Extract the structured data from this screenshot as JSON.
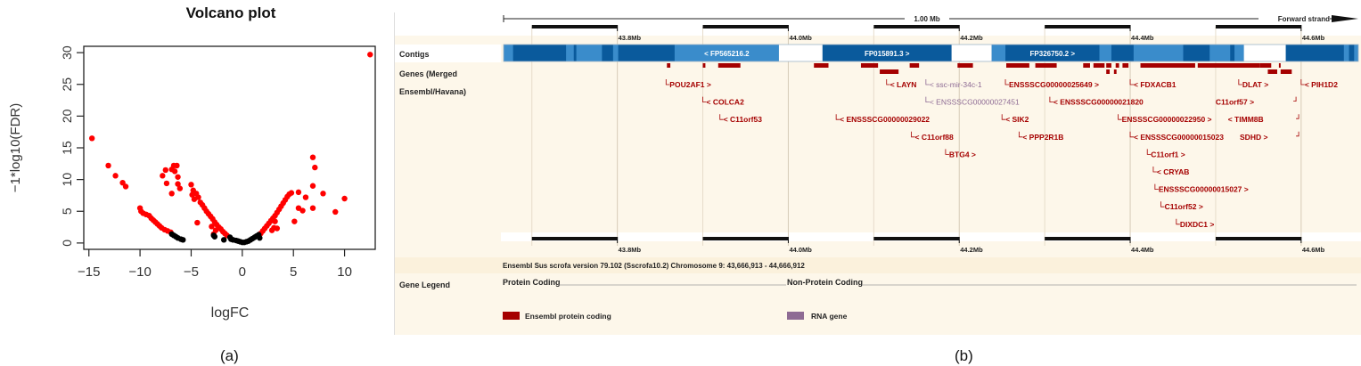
{
  "chart_data": [
    {
      "type": "scatter",
      "title": "Volcano plot",
      "xlabel": "logFC",
      "ylabel": "−1*log10(FDR)",
      "xlim": [
        -15.5,
        13
      ],
      "ylim": [
        -1,
        31
      ],
      "xticks": [
        -15,
        -10,
        -5,
        0,
        5,
        10
      ],
      "xtick_labels": [
        "−15",
        "−10",
        "−5",
        "0",
        "5",
        "10"
      ],
      "yticks": [
        0,
        5,
        10,
        15,
        20,
        25,
        30
      ],
      "ytick_labels": [
        "0",
        "5",
        "10",
        "15",
        "20",
        "25",
        "30"
      ],
      "grid": false,
      "series": [
        {
          "name": "significant",
          "color": "#ff0000",
          "points": [
            [
              12.5,
              29.7
            ],
            [
              -14.7,
              16.5
            ],
            [
              -13.1,
              12.2
            ],
            [
              -12.4,
              10.6
            ],
            [
              -11.7,
              9.5
            ],
            [
              -11.4,
              8.9
            ],
            [
              -10,
              5.5
            ],
            [
              -9.9,
              5.0
            ],
            [
              -9.7,
              4.7
            ],
            [
              -9.4,
              4.5
            ],
            [
              -9.1,
              4.3
            ],
            [
              -8.9,
              3.9
            ],
            [
              -8.7,
              3.6
            ],
            [
              -8.5,
              3.3
            ],
            [
              -8.3,
              3.0
            ],
            [
              -8.1,
              2.7
            ],
            [
              -7.9,
              2.4
            ],
            [
              -7.6,
              2.1
            ],
            [
              -7.3,
              1.9
            ],
            [
              -7.0,
              1.7
            ],
            [
              -7.8,
              10.6
            ],
            [
              -7.5,
              11.5
            ],
            [
              -7.4,
              9.4
            ],
            [
              -6.9,
              11.6
            ],
            [
              -6.7,
              12.2
            ],
            [
              -6.4,
              12.2
            ],
            [
              -6.6,
              11.3
            ],
            [
              -6.3,
              10.4
            ],
            [
              -6.9,
              7.8
            ],
            [
              -6.3,
              9.3
            ],
            [
              -6.1,
              8.6
            ],
            [
              -5.0,
              9.2
            ],
            [
              -4.8,
              8.3
            ],
            [
              -4.9,
              7.6
            ],
            [
              -4.7,
              6.9
            ],
            [
              -4.5,
              7.8
            ],
            [
              -4.3,
              7.2
            ],
            [
              -4.1,
              6.4
            ],
            [
              -3.9,
              6.0
            ],
            [
              -3.7,
              5.5
            ],
            [
              -3.5,
              5.0
            ],
            [
              -3.3,
              4.6
            ],
            [
              -3.1,
              4.2
            ],
            [
              -2.9,
              3.8
            ],
            [
              -2.7,
              3.3
            ],
            [
              -2.5,
              2.9
            ],
            [
              -2.3,
              2.5
            ],
            [
              -2.1,
              2.2
            ],
            [
              -1.9,
              1.8
            ],
            [
              -1.7,
              1.5
            ],
            [
              -1.5,
              1.2
            ],
            [
              -4.4,
              3.2
            ],
            [
              -3.0,
              2.6
            ],
            [
              -2.6,
              2.0
            ],
            [
              -2.8,
              1.4
            ],
            [
              1.8,
              1.5
            ],
            [
              2.0,
              1.9
            ],
            [
              2.2,
              2.3
            ],
            [
              2.4,
              2.7
            ],
            [
              2.6,
              3.1
            ],
            [
              2.8,
              3.5
            ],
            [
              3.0,
              3.9
            ],
            [
              3.2,
              4.3
            ],
            [
              3.4,
              4.8
            ],
            [
              3.6,
              5.3
            ],
            [
              3.8,
              5.8
            ],
            [
              4.0,
              6.3
            ],
            [
              4.2,
              6.8
            ],
            [
              4.4,
              7.3
            ],
            [
              4.6,
              7.7
            ],
            [
              4.8,
              7.9
            ],
            [
              3.1,
              2.4
            ],
            [
              3.4,
              2.3
            ],
            [
              3.2,
              3.4
            ],
            [
              2.9,
              2.0
            ],
            [
              5.5,
              8.0
            ],
            [
              6.2,
              7.2
            ],
            [
              5.5,
              5.5
            ],
            [
              5.9,
              5.1
            ],
            [
              5.1,
              3.4
            ],
            [
              6.9,
              13.5
            ],
            [
              7.1,
              11.9
            ],
            [
              6.9,
              9.0
            ],
            [
              6.9,
              5.5
            ],
            [
              7.9,
              7.8
            ],
            [
              9.1,
              4.9
            ],
            [
              10.0,
              7.0
            ]
          ]
        },
        {
          "name": "not significant",
          "color": "#000000",
          "points": [
            [
              -6.9,
              1.4
            ],
            [
              -6.7,
              1.2
            ],
            [
              -6.5,
              1.0
            ],
            [
              -6.3,
              0.8
            ],
            [
              -6.0,
              0.6
            ],
            [
              -5.8,
              0.5
            ],
            [
              -2.8,
              1.2
            ],
            [
              -2.7,
              1.0
            ],
            [
              -1.8,
              0.5
            ],
            [
              -1.2,
              0.9
            ],
            [
              -1.1,
              0.6
            ],
            [
              -0.9,
              0.5
            ],
            [
              -0.6,
              0.4
            ],
            [
              -0.4,
              0.3
            ],
            [
              -0.2,
              0.2
            ],
            [
              0,
              0.1
            ],
            [
              0.2,
              0.1
            ],
            [
              0.4,
              0.2
            ],
            [
              0.6,
              0.3
            ],
            [
              0.8,
              0.5
            ],
            [
              1.0,
              0.7
            ],
            [
              1.2,
              0.9
            ],
            [
              1.4,
              1.1
            ],
            [
              1.6,
              1.3
            ],
            [
              1.7,
              0.8
            ]
          ]
        }
      ]
    },
    {
      "type": "genome-track",
      "region": "Chromosome 9: 43,666,913 - 44,666,912",
      "scale_label": "1.00 Mb",
      "strand_label": "Forward strand",
      "ticks_mb": [
        43.8,
        44.0,
        44.2,
        44.4,
        44.6
      ],
      "tick_labels": [
        "43.8Mb",
        "44.0Mb",
        "44.2Mb",
        "44.4Mb",
        "44.6Mb"
      ],
      "start_mb": 43.6669,
      "end_mb": 44.6669,
      "track_labels": {
        "contigs": "Contigs",
        "genes_line1": "Genes (Merged",
        "genes_line2": "Ensembl/Havana)",
        "legend": "Gene Legend"
      },
      "contigs": [
        {
          "label": "< FP565216.2",
          "start": 43.867,
          "end": 43.989,
          "shade": "light"
        },
        {
          "label": "FP015891.3 >",
          "start": 44.04,
          "end": 44.191,
          "shade": "dark"
        },
        {
          "label": "FP326750.2 >",
          "start": 44.254,
          "end": 44.364,
          "shade": "dark"
        }
      ],
      "genes": [
        {
          "label": "POU2AF1 >",
          "pos": 43.857,
          "row": 0,
          "type": "protein"
        },
        {
          "label": "< COLCA2",
          "pos": 43.9,
          "row": 1,
          "type": "protein"
        },
        {
          "label": "< C11orf53",
          "pos": 43.92,
          "row": 2,
          "type": "protein"
        },
        {
          "label": "< LAYN",
          "pos": 44.115,
          "row": 0,
          "type": "protein"
        },
        {
          "label": "< ssc-mir-34c-1",
          "pos": 44.161,
          "row": 0,
          "type": "rna"
        },
        {
          "label": "< ENSSSCG00000027451",
          "pos": 44.161,
          "row": 1,
          "type": "rna"
        },
        {
          "label": "< ENSSSCG00000029022",
          "pos": 44.056,
          "row": 2,
          "type": "protein"
        },
        {
          "label": "< C11orf88",
          "pos": 44.144,
          "row": 3,
          "type": "protein"
        },
        {
          "label": "BTG4 >",
          "pos": 44.184,
          "row": 4,
          "type": "protein"
        },
        {
          "label": "ENSSSCG00000025649 >",
          "pos": 44.254,
          "row": 0,
          "type": "protein"
        },
        {
          "label": "< ENSSSCG00000021820",
          "pos": 44.306,
          "row": 1,
          "type": "protein"
        },
        {
          "label": "< SIK2",
          "pos": 44.25,
          "row": 2,
          "type": "protein"
        },
        {
          "label": "< PPP2R1B",
          "pos": 44.27,
          "row": 3,
          "type": "protein"
        },
        {
          "label": "< FDXACB1",
          "pos": 44.4,
          "row": 0,
          "type": "protein"
        },
        {
          "label": "ENSSSCG00000022950 >",
          "pos": 44.386,
          "row": 2,
          "type": "protein"
        },
        {
          "label": "< ENSSSCG00000015023",
          "pos": 44.4,
          "row": 3,
          "type": "protein"
        },
        {
          "label": "C11orf1 >",
          "pos": 44.42,
          "row": 4,
          "type": "protein"
        },
        {
          "label": "< CRYAB",
          "pos": 44.427,
          "row": 5,
          "type": "protein"
        },
        {
          "label": "ENSSSCG00000015027 >",
          "pos": 44.429,
          "row": 6,
          "type": "protein"
        },
        {
          "label": "C11orf52 >",
          "pos": 44.436,
          "row": 7,
          "type": "protein"
        },
        {
          "label": "DIXDC1 >",
          "pos": 44.454,
          "row": 8,
          "type": "protein"
        },
        {
          "label": "DLAT >",
          "pos": 44.527,
          "row": 0,
          "type": "protein"
        },
        {
          "label": "C11orf57 >",
          "pos": 44.545,
          "row": 1,
          "type": "protein",
          "anchor": "end"
        },
        {
          "label": "< TIMM8B",
          "pos": 44.556,
          "row": 2,
          "type": "protein",
          "anchor": "end"
        },
        {
          "label": "SDHD >",
          "pos": 44.561,
          "row": 3,
          "type": "protein",
          "anchor": "end"
        },
        {
          "label": "< PIH1D2",
          "pos": 44.6,
          "row": 0,
          "type": "protein"
        }
      ],
      "footer": "Ensembl Sus scrofa version 79.102 (Sscrofa10.2) Chromosome 9: 43,666,913 - 44,666,912",
      "legend": {
        "protein_heading": "Protein Coding",
        "nonprotein_heading": "Non-Protein Coding",
        "protein_item": "Ensembl protein coding",
        "rna_item": "RNA gene",
        "protein_color": "#a50000",
        "rna_color": "#8e6b94"
      }
    }
  ],
  "captions": {
    "a": "(a)",
    "b": "(b)"
  },
  "colors": {
    "contig_dark": "#0a5a9c",
    "contig_light": "#3a8ccb",
    "track_bg": "#fdf7ea",
    "gene_red": "#a50000",
    "rna_purple": "#8e6b94"
  }
}
